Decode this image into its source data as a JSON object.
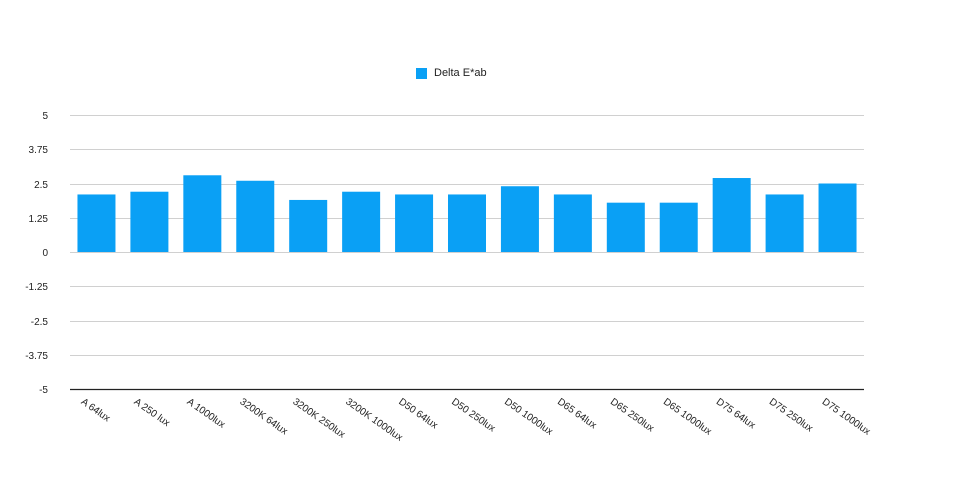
{
  "chart_data": {
    "type": "bar",
    "title": "",
    "xlabel": "",
    "ylabel": "",
    "categories": [
      "A 64lux",
      "A 250 lux",
      "A 1000lux",
      "3200K 64lux",
      "3200K 250lux",
      "3200K 1000lux",
      "D50 64lux",
      "D50 250lux",
      "D50 1000lux",
      "D65 64lux",
      "D65 250lux",
      "D65 1000lux",
      "D75 64lux",
      "D75 250lux",
      "D75 1000lux"
    ],
    "series": [
      {
        "name": "Delta E*ab",
        "color": "#0aa0f5",
        "values": [
          2.1,
          2.2,
          2.8,
          2.6,
          1.9,
          2.2,
          2.1,
          2.1,
          2.4,
          2.1,
          1.8,
          1.8,
          2.7,
          2.1,
          2.5
        ]
      }
    ],
    "ylim": [
      -5,
      5
    ],
    "yticks": [
      5,
      3.75,
      2.5,
      1.25,
      0,
      -1.25,
      -2.5,
      -3.75,
      -5
    ],
    "ytick_labels": [
      "5",
      "3.75",
      "2.5",
      "1.25",
      "0",
      "-1.25",
      "-2.5",
      "-3.75",
      "-5"
    ],
    "grid": true,
    "legend_position": "top-center"
  },
  "colors": {
    "gridline": "#d0d0d0",
    "axis": "#222222"
  }
}
